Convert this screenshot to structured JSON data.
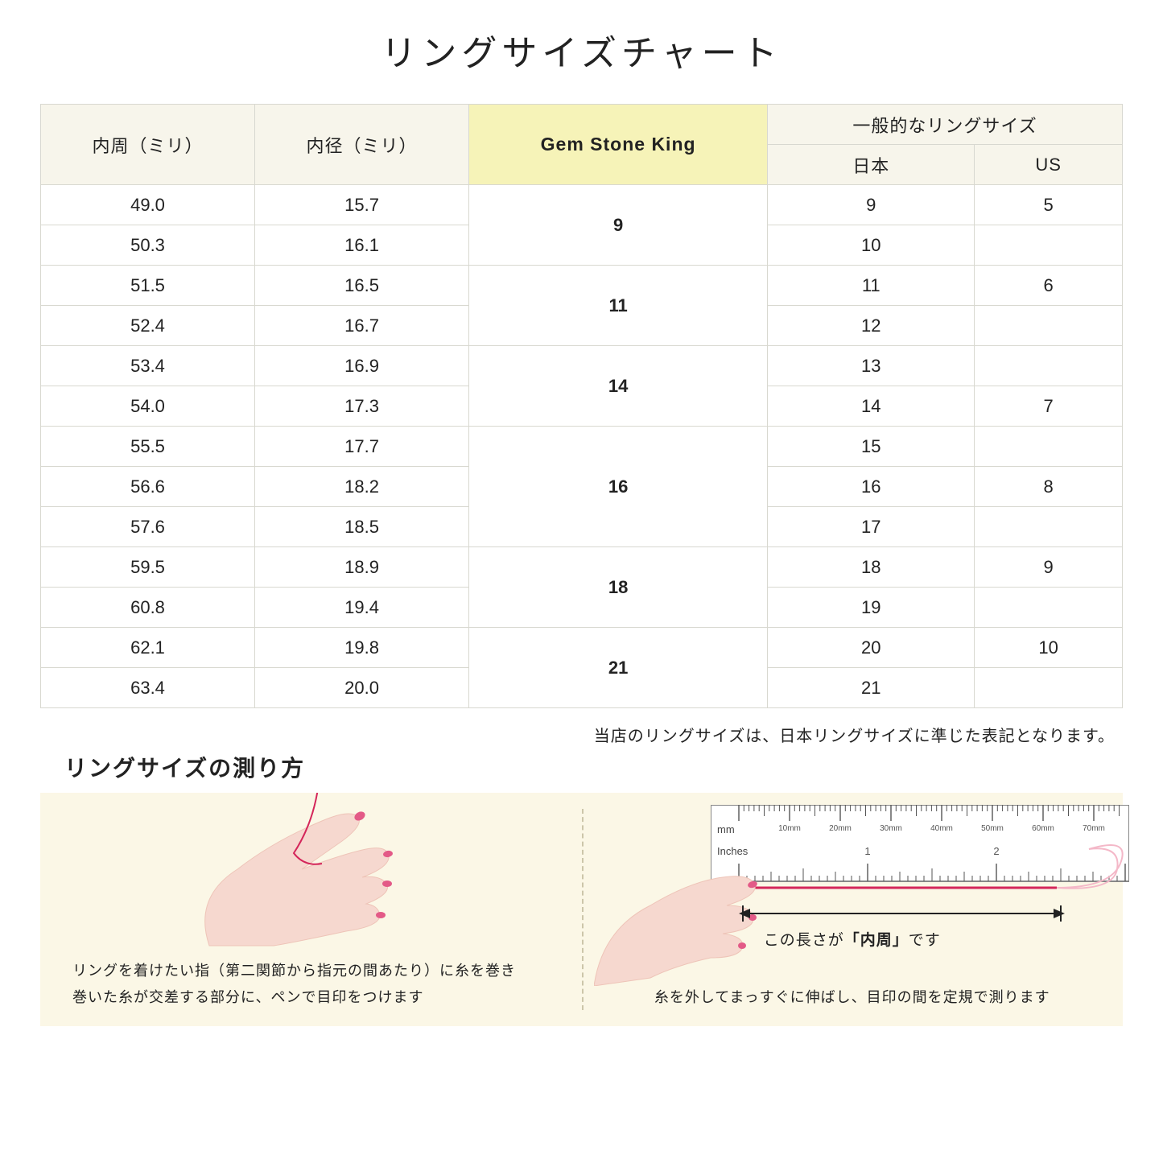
{
  "title": "リングサイズチャート",
  "columns": {
    "circumference": "内周（ミリ）",
    "diameter": "内径（ミリ）",
    "gsk": "Gem Stone King",
    "general_header": "一般的なリングサイズ",
    "japan": "日本",
    "us": "US"
  },
  "groups": [
    {
      "gsk": "9",
      "rows": [
        {
          "circ": "49.0",
          "dia": "15.7",
          "jp": "9",
          "us": "5"
        },
        {
          "circ": "50.3",
          "dia": "16.1",
          "jp": "10",
          "us": ""
        }
      ]
    },
    {
      "gsk": "11",
      "rows": [
        {
          "circ": "51.5",
          "dia": "16.5",
          "jp": "11",
          "us": "6"
        },
        {
          "circ": "52.4",
          "dia": "16.7",
          "jp": "12",
          "us": ""
        }
      ]
    },
    {
      "gsk": "14",
      "rows": [
        {
          "circ": "53.4",
          "dia": "16.9",
          "jp": "13",
          "us": ""
        },
        {
          "circ": "54.0",
          "dia": "17.3",
          "jp": "14",
          "us": "7"
        }
      ]
    },
    {
      "gsk": "16",
      "rows": [
        {
          "circ": "55.5",
          "dia": "17.7",
          "jp": "15",
          "us": ""
        },
        {
          "circ": "56.6",
          "dia": "18.2",
          "jp": "16",
          "us": "8"
        },
        {
          "circ": "57.6",
          "dia": "18.5",
          "jp": "17",
          "us": ""
        }
      ]
    },
    {
      "gsk": "18",
      "rows": [
        {
          "circ": "59.5",
          "dia": "18.9",
          "jp": "18",
          "us": "9"
        },
        {
          "circ": "60.8",
          "dia": "19.4",
          "jp": "19",
          "us": ""
        }
      ]
    },
    {
      "gsk": "21",
      "rows": [
        {
          "circ": "62.1",
          "dia": "19.8",
          "jp": "20",
          "us": "10"
        },
        {
          "circ": "63.4",
          "dia": "20.0",
          "jp": "21",
          "us": ""
        }
      ]
    }
  ],
  "note": "当店のリングサイズは、日本リングサイズに準じた表記となります。",
  "howto": {
    "title": "リングサイズの測り方",
    "left_caption_l1": "リングを着けたい指（第二関節から指元の間あたり）に糸を巻き",
    "left_caption_l2": "巻いた糸が交差する部分に、ペンで目印をつけます",
    "ruler_label_pre": "この長さが",
    "ruler_label_bold": "「内周」",
    "ruler_label_post": "です",
    "right_caption": "糸を外してまっすぐに伸ばし、目印の間を定規で測ります",
    "ruler_mm": "mm",
    "ruler_inches": "Inches",
    "ruler_mm_ticks": [
      "10mm",
      "20mm",
      "30mm",
      "40mm",
      "50mm",
      "60mm",
      "70mm"
    ],
    "ruler_inch_ticks": [
      "1",
      "2"
    ]
  },
  "style": {
    "header_bg": "#f7f5eb",
    "gsk_header_bg": "#f6f3b8",
    "border_color": "#d8d8d0",
    "howto_bg": "#fbf7e6",
    "hand_skin": "#f6d8cf",
    "hand_skin_dark": "#eec4b8",
    "nail_color": "#e35a87",
    "thread_color": "#d4265a",
    "ruler_border": "#888888",
    "ruler_bg": "#ffffff",
    "arrow_color": "#222222"
  }
}
